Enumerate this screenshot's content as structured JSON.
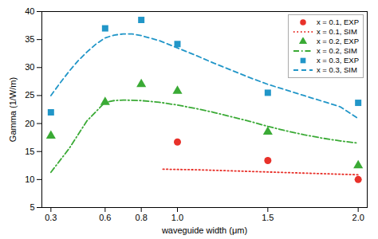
{
  "chart_data": {
    "type": "line",
    "xlabel": "waveguide width (μm)",
    "ylabel": "Gamma (1/W/m)",
    "xlim": [
      0.25,
      2.05
    ],
    "ylim": [
      5,
      40
    ],
    "xticks": [
      0.3,
      0.6,
      0.8,
      {
        "value": 1.0,
        "label": "1.0"
      },
      1.5,
      {
        "value": 2.0,
        "label": "2.0"
      }
    ],
    "yticks": [
      5,
      10,
      15,
      20,
      25,
      30,
      35,
      40
    ],
    "grid": false,
    "legend": "upper right",
    "series": [
      {
        "name": "x = 0.1, EXP",
        "type": "scatter",
        "marker": "circle",
        "color": "#e8312a",
        "x": [
          1.0,
          1.5,
          2.0
        ],
        "values": [
          16.7,
          13.4,
          10.0
        ]
      },
      {
        "name": "x = 0.1, SIM",
        "type": "line",
        "line_style": "dotted",
        "color": "#e8312a",
        "x": [
          0.92,
          1.0,
          1.1,
          1.2,
          1.3,
          1.4,
          1.5,
          1.6,
          1.7,
          1.8,
          1.9,
          2.0
        ],
        "values": [
          11.85,
          11.8,
          11.75,
          11.65,
          11.55,
          11.45,
          11.35,
          11.25,
          11.15,
          11.05,
          10.95,
          10.85
        ]
      },
      {
        "name": "x = 0.2, EXP",
        "type": "scatter",
        "marker": "triangle",
        "color": "#3aaa35",
        "x": [
          0.3,
          0.6,
          0.8,
          1.0,
          1.5,
          2.0
        ],
        "values": [
          17.8,
          23.8,
          27.0,
          25.8,
          18.5,
          12.5
        ]
      },
      {
        "name": "x = 0.2, SIM",
        "type": "line",
        "line_style": "dashdot",
        "color": "#3aaa35",
        "x": [
          0.3,
          0.4,
          0.5,
          0.6,
          0.65,
          0.7,
          0.8,
          0.9,
          1.0,
          1.1,
          1.2,
          1.3,
          1.4,
          1.5,
          1.6,
          1.7,
          1.8,
          1.9,
          2.0
        ],
        "values": [
          11.3,
          15.5,
          20.5,
          23.8,
          24.1,
          24.2,
          24.1,
          23.8,
          23.3,
          22.7,
          22.0,
          21.2,
          20.4,
          19.5,
          18.7,
          18.0,
          17.4,
          16.9,
          16.5
        ]
      },
      {
        "name": "x = 0.3, EXP",
        "type": "scatter",
        "marker": "square",
        "color": "#2196c8",
        "x": [
          0.3,
          0.6,
          0.8,
          1.0,
          1.5,
          2.0
        ],
        "values": [
          22.0,
          37.0,
          38.5,
          34.2,
          25.5,
          23.7
        ]
      },
      {
        "name": "x = 0.3, SIM",
        "type": "line",
        "line_style": "dashed",
        "color": "#2196c8",
        "x": [
          0.3,
          0.35,
          0.4,
          0.45,
          0.5,
          0.55,
          0.6,
          0.65,
          0.7,
          0.75,
          0.8,
          0.9,
          1.0,
          1.1,
          1.2,
          1.3,
          1.4,
          1.5,
          1.6,
          1.7,
          1.8,
          1.9,
          2.0
        ],
        "values": [
          25.0,
          27.2,
          29.3,
          31.2,
          32.8,
          34.2,
          35.3,
          35.8,
          36.0,
          36.0,
          35.7,
          34.8,
          33.5,
          32.2,
          30.8,
          29.5,
          28.2,
          27.0,
          26.0,
          25.0,
          24.0,
          23.0,
          20.9
        ]
      }
    ]
  }
}
